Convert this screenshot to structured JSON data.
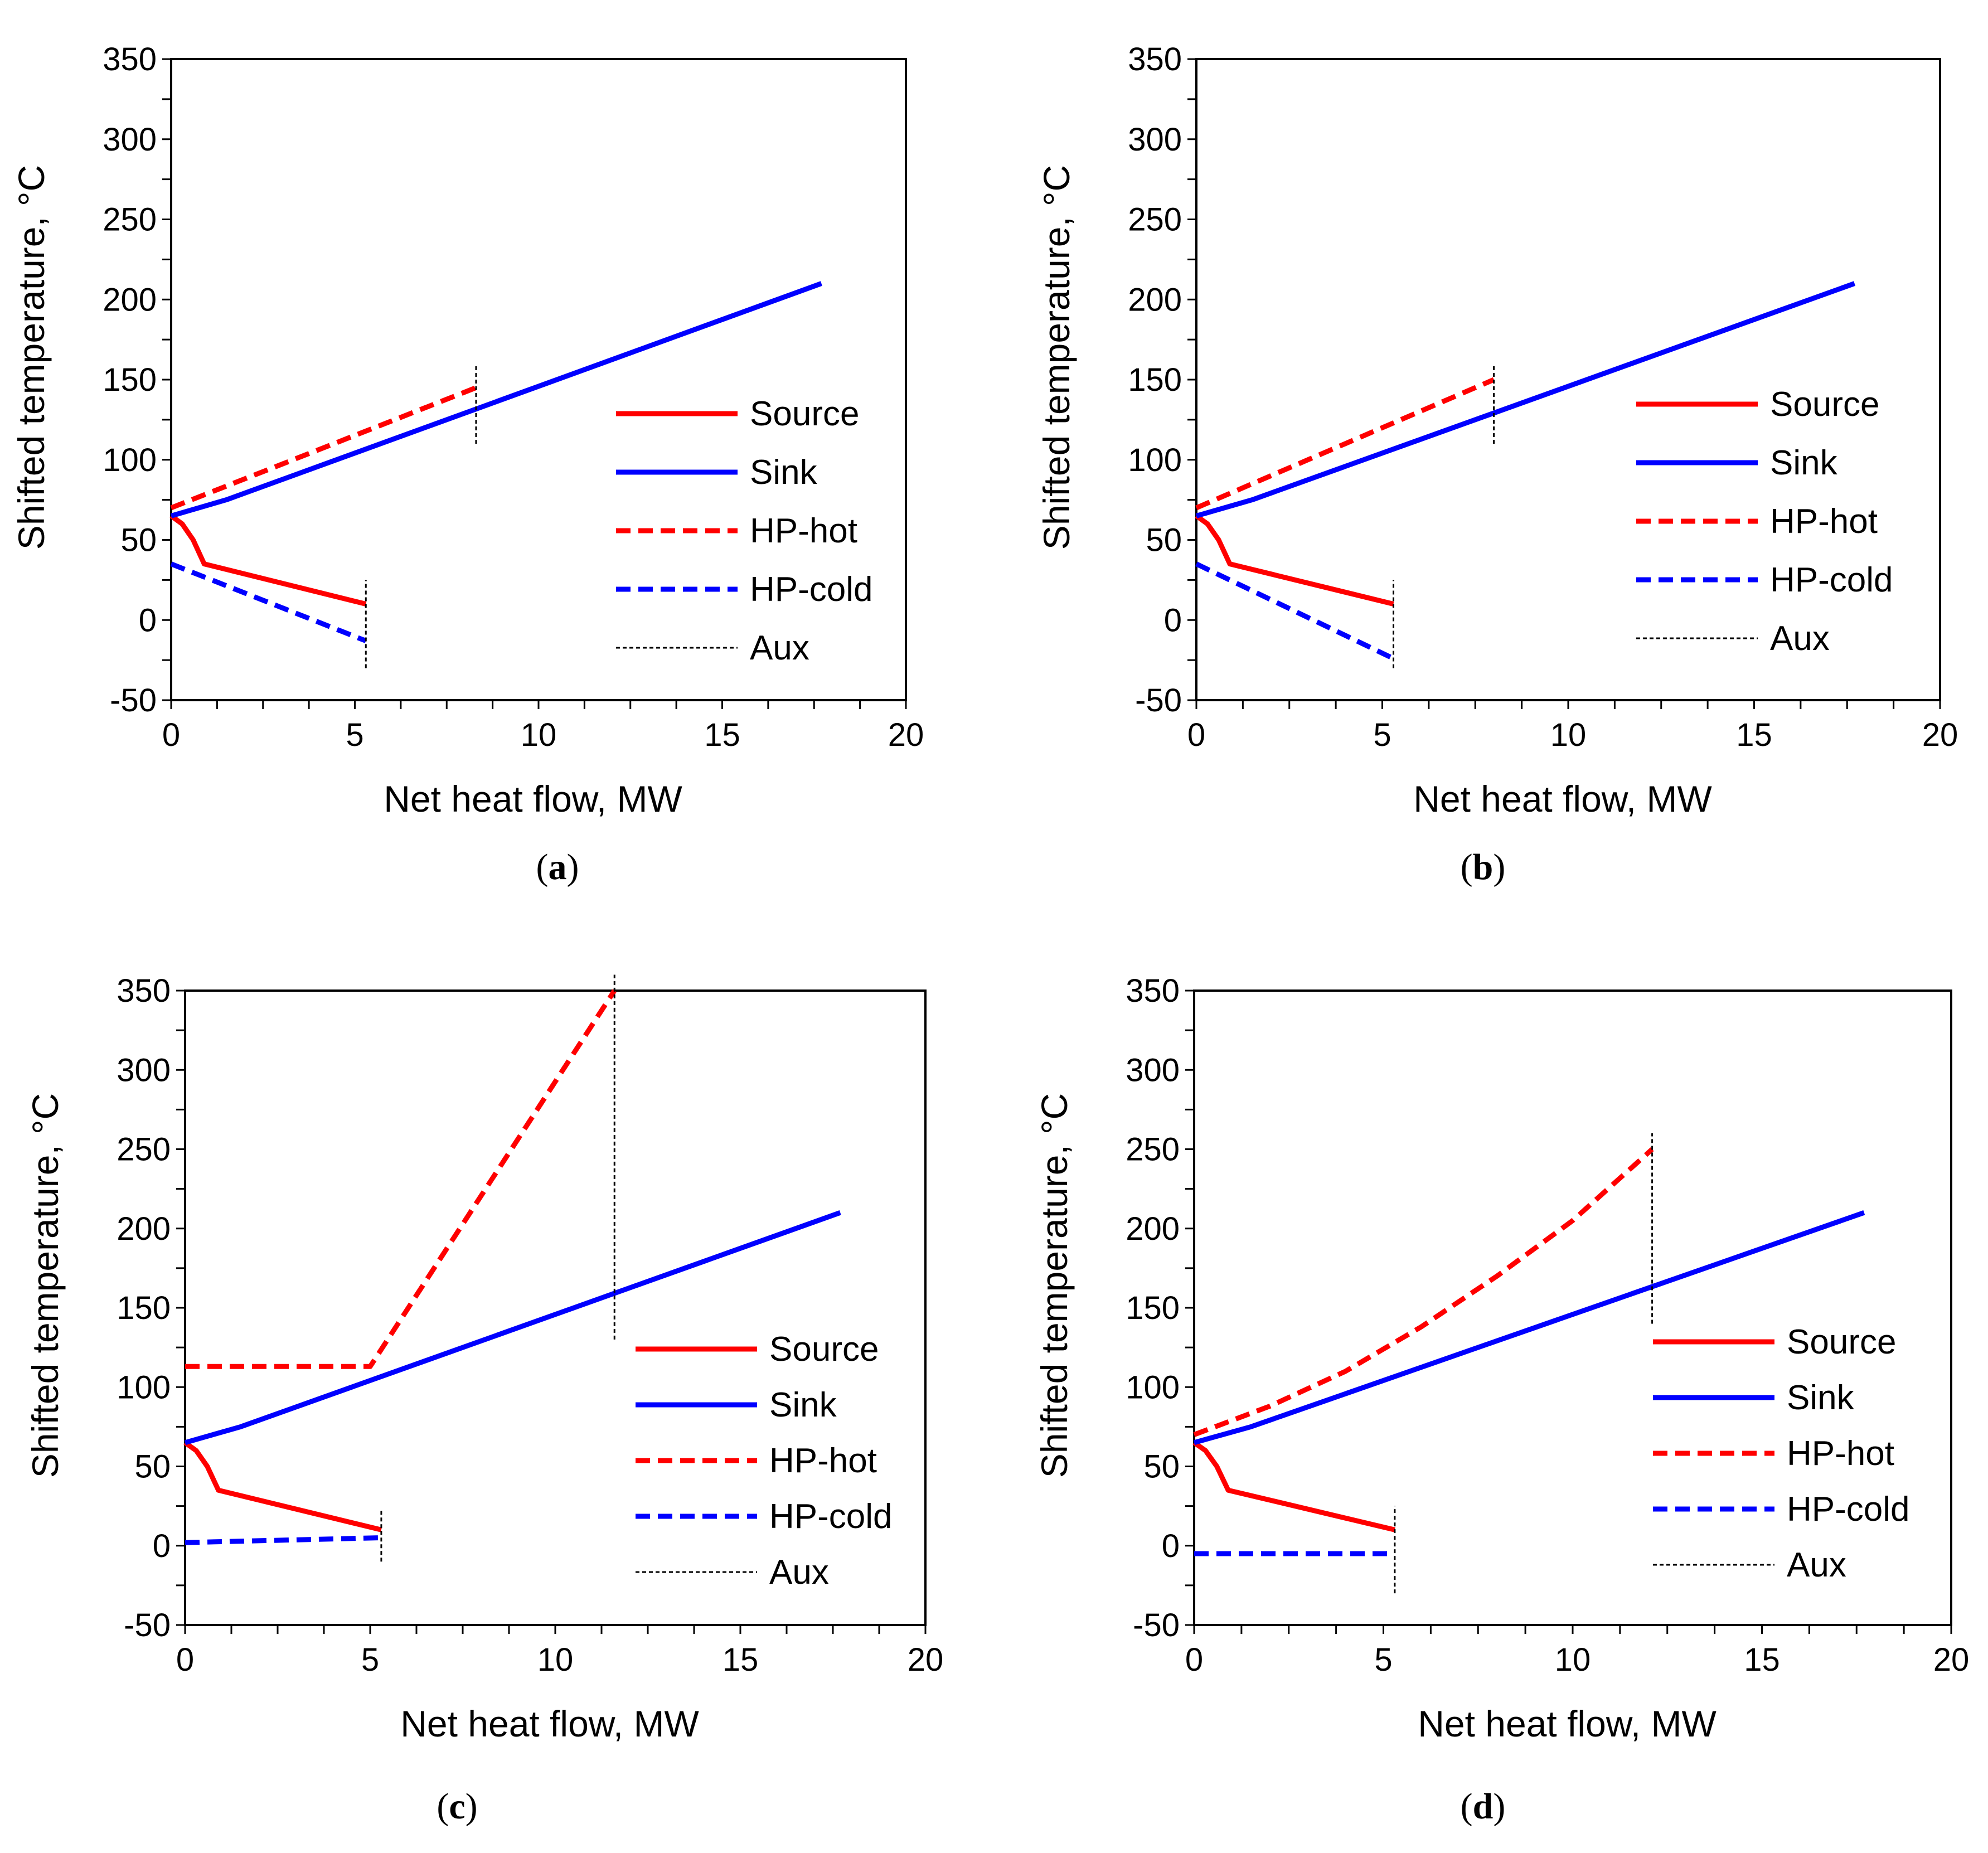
{
  "figure": {
    "description_free": true,
    "panel_letters": [
      "a",
      "b",
      "c",
      "d"
    ]
  },
  "colors": {
    "source": "#ff0000",
    "sink": "#0000ff",
    "hp_hot": "#ff0000",
    "hp_cold": "#0000ff",
    "aux": "#000000",
    "axis": "#000000"
  },
  "chart_data": [
    {
      "type": "line",
      "panel": "a",
      "xlabel": "Net heat flow, MW",
      "ylabel": "Shifted  temperature, °C",
      "xlim": [
        0,
        20
      ],
      "ylim": [
        -50,
        350
      ],
      "xticks": [
        "0",
        "5",
        "10",
        "15",
        "20"
      ],
      "yticks": [
        "-50",
        "0",
        "50",
        "100",
        "150",
        "200",
        "250",
        "300",
        "350"
      ],
      "legend": {
        "position": "right-middle",
        "entries": [
          "Source",
          "Sink",
          "HP-hot",
          "HP-cold",
          "Aux"
        ]
      },
      "series": [
        {
          "name": "Source",
          "style": "solid",
          "color": "#ff0000",
          "points": [
            [
              0,
              65
            ],
            [
              0.3,
              60
            ],
            [
              0.6,
              50
            ],
            [
              0.9,
              35
            ],
            [
              5.3,
              10
            ]
          ]
        },
        {
          "name": "Sink",
          "style": "solid",
          "color": "#0000ff",
          "points": [
            [
              0,
              65
            ],
            [
              1.5,
              75
            ],
            [
              17.7,
              210
            ]
          ]
        },
        {
          "name": "HP-hot",
          "style": "dashed",
          "color": "#ff0000",
          "points": [
            [
              0,
              70
            ],
            [
              8.3,
              145
            ]
          ]
        },
        {
          "name": "HP-cold",
          "style": "dashed",
          "color": "#0000ff",
          "points": [
            [
              0,
              35
            ],
            [
              5.3,
              -13
            ]
          ]
        },
        {
          "name": "Aux",
          "style": "dotted",
          "color": "#000000",
          "segments": [
            [
              [
                8.3,
                110
              ],
              [
                8.3,
                160
              ]
            ],
            [
              [
                5.3,
                -30
              ],
              [
                5.3,
                25
              ]
            ]
          ]
        }
      ]
    },
    {
      "type": "line",
      "panel": "b",
      "xlabel": "Net heat flow, MW",
      "ylabel": "Shifted  temperature, °C",
      "xlim": [
        0,
        20
      ],
      "ylim": [
        -50,
        350
      ],
      "xticks": [
        "0",
        "5",
        "10",
        "15",
        "20"
      ],
      "yticks": [
        "-50",
        "0",
        "50",
        "100",
        "150",
        "200",
        "250",
        "300",
        "350"
      ],
      "legend": {
        "position": "right-middle",
        "entries": [
          "Source",
          "Sink",
          "HP-hot",
          "HP-cold",
          "Aux"
        ]
      },
      "series": [
        {
          "name": "Source",
          "style": "solid",
          "color": "#ff0000",
          "points": [
            [
              0,
              65
            ],
            [
              0.3,
              60
            ],
            [
              0.6,
              50
            ],
            [
              0.9,
              35
            ],
            [
              5.3,
              10
            ]
          ]
        },
        {
          "name": "Sink",
          "style": "solid",
          "color": "#0000ff",
          "points": [
            [
              0,
              65
            ],
            [
              1.5,
              75
            ],
            [
              17.7,
              210
            ]
          ]
        },
        {
          "name": "HP-hot",
          "style": "dashed",
          "color": "#ff0000",
          "points": [
            [
              0,
              70
            ],
            [
              8.0,
              150
            ]
          ]
        },
        {
          "name": "HP-cold",
          "style": "dashed",
          "color": "#0000ff",
          "points": [
            [
              0,
              35
            ],
            [
              5.3,
              -24
            ]
          ]
        },
        {
          "name": "Aux",
          "style": "dotted",
          "color": "#000000",
          "segments": [
            [
              [
                8.0,
                110
              ],
              [
                8.0,
                160
              ]
            ],
            [
              [
                5.3,
                -30
              ],
              [
                5.3,
                25
              ]
            ]
          ]
        }
      ]
    },
    {
      "type": "line",
      "panel": "c",
      "xlabel": "Net heat flow, MW",
      "ylabel": "Shifted  temperature, °C",
      "xlim": [
        0,
        20
      ],
      "ylim": [
        -50,
        350
      ],
      "xticks": [
        "0",
        "5",
        "10",
        "15",
        "20"
      ],
      "yticks": [
        "-50",
        "0",
        "50",
        "100",
        "150",
        "200",
        "250",
        "300",
        "350"
      ],
      "legend": {
        "position": "right-lower",
        "entries": [
          "Source",
          "Sink",
          "HP-hot",
          "HP-cold",
          "Aux"
        ]
      },
      "series": [
        {
          "name": "Source",
          "style": "solid",
          "color": "#ff0000",
          "points": [
            [
              0,
              65
            ],
            [
              0.3,
              60
            ],
            [
              0.6,
              50
            ],
            [
              0.9,
              35
            ],
            [
              5.3,
              10
            ]
          ]
        },
        {
          "name": "Sink",
          "style": "solid",
          "color": "#0000ff",
          "points": [
            [
              0,
              65
            ],
            [
              1.5,
              75
            ],
            [
              17.7,
              210
            ]
          ]
        },
        {
          "name": "HP-hot",
          "style": "dashed",
          "color": "#ff0000",
          "points": [
            [
              0,
              113
            ],
            [
              5.0,
              113
            ],
            [
              11.6,
              350
            ]
          ]
        },
        {
          "name": "HP-cold",
          "style": "dashed",
          "color": "#0000ff",
          "points": [
            [
              0,
              2
            ],
            [
              5.3,
              5
            ]
          ]
        },
        {
          "name": "Aux",
          "style": "dotted",
          "color": "#000000",
          "segments": [
            [
              [
                11.6,
                130
              ],
              [
                11.6,
                360
              ]
            ],
            [
              [
                5.3,
                -10
              ],
              [
                5.3,
                23
              ]
            ]
          ]
        }
      ]
    },
    {
      "type": "line",
      "panel": "d",
      "xlabel": "Net heat flow, MW",
      "ylabel": "Shifted  temperature, °C",
      "xlim": [
        0,
        20
      ],
      "ylim": [
        -50,
        350
      ],
      "xticks": [
        "0",
        "5",
        "10",
        "15",
        "20"
      ],
      "yticks": [
        "-50",
        "0",
        "50",
        "100",
        "150",
        "200",
        "250",
        "300",
        "350"
      ],
      "legend": {
        "position": "right-lower",
        "entries": [
          "Source",
          "Sink",
          "HP-hot",
          "HP-cold",
          "Aux"
        ]
      },
      "series": [
        {
          "name": "Source",
          "style": "solid",
          "color": "#ff0000",
          "points": [
            [
              0,
              65
            ],
            [
              0.3,
              60
            ],
            [
              0.6,
              50
            ],
            [
              0.9,
              35
            ],
            [
              5.3,
              10
            ]
          ]
        },
        {
          "name": "Sink",
          "style": "solid",
          "color": "#0000ff",
          "points": [
            [
              0,
              65
            ],
            [
              1.5,
              75
            ],
            [
              17.7,
              210
            ]
          ]
        },
        {
          "name": "HP-hot",
          "style": "dashed",
          "color": "#ff0000",
          "points": [
            [
              0,
              70
            ],
            [
              2,
              88
            ],
            [
              4,
              110
            ],
            [
              6,
              138
            ],
            [
              8,
              170
            ],
            [
              10,
              205
            ],
            [
              12.1,
              250
            ]
          ]
        },
        {
          "name": "HP-cold",
          "style": "dashed",
          "color": "#0000ff",
          "points": [
            [
              0,
              -5
            ],
            [
              5.3,
              -5
            ]
          ]
        },
        {
          "name": "Aux",
          "style": "dotted",
          "color": "#000000",
          "segments": [
            [
              [
                12.1,
                140
              ],
              [
                12.1,
                260
              ]
            ],
            [
              [
                5.3,
                -30
              ],
              [
                5.3,
                25
              ]
            ]
          ]
        }
      ]
    }
  ]
}
